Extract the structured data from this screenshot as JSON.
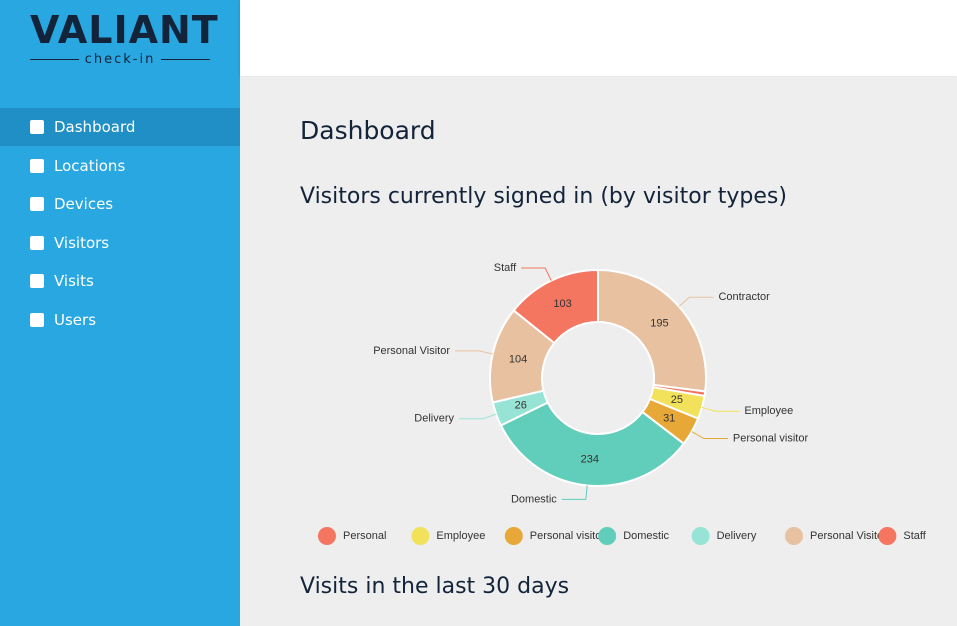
{
  "sidebar": {
    "logo": "VALIANT",
    "logo_subtitle": "check-in",
    "nav": [
      "Dashboard",
      "Locations",
      "Devices",
      "Visitors",
      "Visits",
      "Users"
    ]
  },
  "content": {
    "title": "Dashboard",
    "section1": "Visitors currently signed in (by visitor types)",
    "section2": "Visits in the last 30 days"
  },
  "chart_data": {
    "type": "donut",
    "categories": [
      "Personal",
      "Employee",
      "Personal visitor",
      "Domestic",
      "Delivery",
      "Personal Visitor",
      "Staff",
      "Contractor"
    ],
    "values": [
      5,
      25,
      31,
      234,
      26,
      104,
      103,
      195
    ],
    "colors": [
      "#f47560",
      "#f1e15b",
      "#e8a838",
      "#61cdbb",
      "#97e3d5",
      "#e8c1a0",
      "#f47560",
      "#e8c1a0"
    ]
  }
}
